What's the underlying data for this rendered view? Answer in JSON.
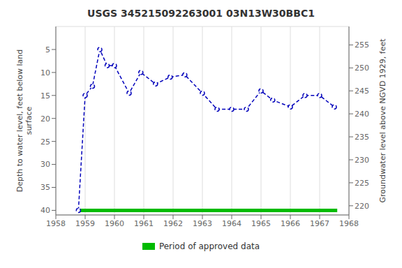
{
  "chart_data": {
    "type": "line",
    "title": "USGS 345215092263001 03N13W30BBC1",
    "x": [
      1958.77,
      1959.0,
      1959.25,
      1959.5,
      1959.75,
      1960.0,
      1960.5,
      1960.9,
      1961.4,
      1961.9,
      1962.4,
      1963.0,
      1963.5,
      1964.0,
      1964.5,
      1965.0,
      1965.4,
      1966.0,
      1966.5,
      1967.0,
      1967.5
    ],
    "series": [
      {
        "color": "#0000bb",
        "marker": "circle",
        "line_style": "dashed",
        "values": [
          40.0,
          15.0,
          13.0,
          5.0,
          8.5,
          8.5,
          14.5,
          10.0,
          12.5,
          11.0,
          10.5,
          14.5,
          18.0,
          18.0,
          18.0,
          14.0,
          16.0,
          17.5,
          15.0,
          15.0,
          17.5
        ]
      },
      {
        "name": "Period of approved data",
        "color": "#00bb00",
        "line_style": "solid",
        "x": [
          1958.77,
          1967.6
        ],
        "values": [
          40.0,
          40.0
        ]
      }
    ],
    "xlim": [
      1958,
      1968
    ],
    "xticks": [
      1958,
      1959,
      1960,
      1961,
      1962,
      1963,
      1964,
      1965,
      1966,
      1967,
      1968
    ],
    "ylim": [
      41,
      0
    ],
    "yticks": [
      5,
      10,
      15,
      20,
      25,
      30,
      35,
      40
    ],
    "y2lim": [
      218,
      259
    ],
    "y2ticks": [
      220,
      225,
      230,
      235,
      240,
      245,
      250,
      255
    ],
    "ylabel": "Depth to water level, feet below land\nsurface",
    "y2label": "Groundwater level above NGVD 1929, feet",
    "grid": true
  }
}
